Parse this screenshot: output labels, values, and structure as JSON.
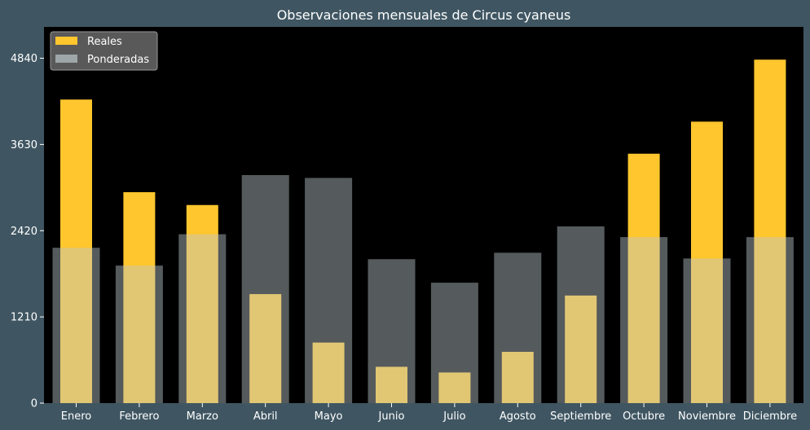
{
  "chart_data": {
    "type": "bar",
    "title": "Observaciones mensuales de Circus cyaneus",
    "xlabel": "",
    "ylabel": "",
    "categories": [
      "Enero",
      "Febrero",
      "Marzo",
      "Abril",
      "Mayo",
      "Junio",
      "Julio",
      "Agosto",
      "Septiembre",
      "Octubre",
      "Noviembre",
      "Diciembre"
    ],
    "series": [
      {
        "name": "Reales",
        "color": "#ffc62d",
        "values": [
          4260,
          2960,
          2780,
          1530,
          850,
          510,
          430,
          720,
          1510,
          3500,
          3950,
          4820
        ]
      },
      {
        "name": "Ponderadas",
        "color": "#bcc8cc",
        "opacity": 0.45,
        "values": [
          2180,
          1930,
          2370,
          3200,
          3160,
          2020,
          1690,
          2110,
          2480,
          2330,
          2030,
          2330
        ]
      }
    ],
    "yticks": [
      "0",
      "1210",
      "2420",
      "3630",
      "4840"
    ],
    "ylim": [
      0,
      5280
    ],
    "grid": false,
    "legend_position": "top-left",
    "plot_background": "#000000",
    "figure_background": "#3f5662"
  }
}
